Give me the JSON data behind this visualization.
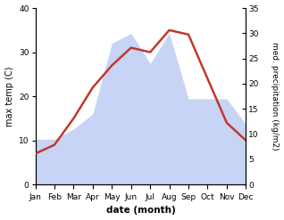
{
  "months": [
    "Jan",
    "Feb",
    "Mar",
    "Apr",
    "May",
    "Jun",
    "Jul",
    "Aug",
    "Sep",
    "Oct",
    "Nov",
    "Dec"
  ],
  "temperature": [
    7,
    9,
    15,
    22,
    27,
    31,
    30,
    35,
    34,
    24,
    14,
    10
  ],
  "precipitation": [
    9,
    9,
    11,
    14,
    28,
    30,
    24,
    30,
    17,
    17,
    17,
    12
  ],
  "temp_color": "#c0392b",
  "precip_color_fill": "#c8d4f5",
  "left_ylabel": "max temp (C)",
  "right_ylabel": "med. precipitation (kg/m2)",
  "xlabel": "date (month)",
  "ylim_left": [
    0,
    40
  ],
  "ylim_right": [
    0,
    35
  ],
  "yticks_left": [
    0,
    10,
    20,
    30,
    40
  ],
  "yticks_right": [
    0,
    5,
    10,
    15,
    20,
    25,
    30,
    35
  ],
  "bg_color": "#ffffff",
  "temp_linewidth": 1.8,
  "figsize": [
    3.18,
    2.47
  ],
  "dpi": 100
}
